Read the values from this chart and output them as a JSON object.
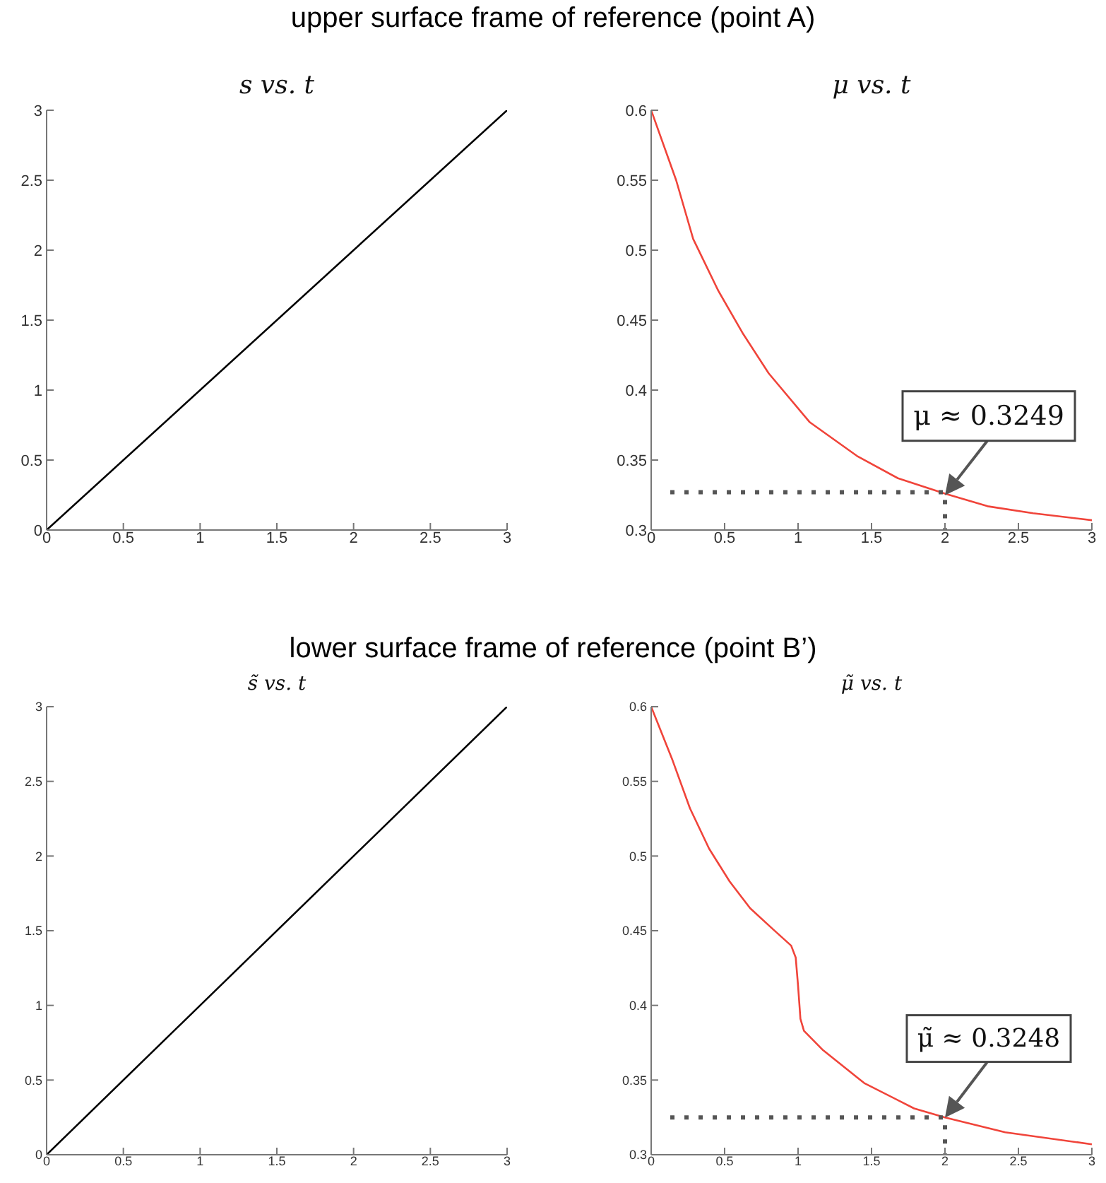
{
  "chart_data": [
    {
      "type": "line",
      "title": "s vs. t",
      "annotations": [
        "upper surface frame of reference (point A)"
      ],
      "series": [
        {
          "color": "#000000",
          "x": [
            0,
            3
          ],
          "values": [
            0,
            3
          ]
        }
      ],
      "xlim": [
        0,
        3
      ],
      "xticks": [
        0,
        0.5,
        1,
        1.5,
        2,
        2.5,
        3
      ],
      "ylim": [
        0,
        3
      ],
      "yticks": [
        0,
        0.5,
        1,
        1.5,
        2,
        2.5,
        3
      ]
    },
    {
      "type": "line",
      "title": "μ vs. t",
      "series": [
        {
          "color": "#f0443a",
          "x": [
            0,
            0.17,
            0.286,
            0.457,
            0.627,
            0.8,
            1.08,
            1.4,
            1.68,
            2,
            2.29,
            2.6,
            3
          ],
          "values": [
            0.6,
            0.55,
            0.508,
            0.471,
            0.44,
            0.412,
            0.377,
            0.353,
            0.337,
            0.326,
            0.317,
            0.312,
            0.307
          ]
        },
        {
          "color": "#555555",
          "line_style": "dotted",
          "x": [
            0.13,
            2,
            2
          ],
          "values": [
            0.327,
            0.327,
            0.3
          ]
        }
      ],
      "annotations": [
        {
          "text": "μ ≈ 0.3249",
          "x": 2,
          "y": 0.3249
        }
      ],
      "xlim": [
        0,
        3
      ],
      "xticks": [
        0,
        0.5,
        1,
        1.5,
        2,
        2.5,
        3
      ],
      "ylim": [
        0.3,
        0.6
      ],
      "yticks": [
        0.3,
        0.35,
        0.4,
        0.45,
        0.5,
        0.55,
        0.6
      ]
    },
    {
      "type": "line",
      "title": "s̃ vs. t",
      "annotations": [
        "lower surface frame of reference (point B’)"
      ],
      "series": [
        {
          "color": "#000000",
          "x": [
            0,
            3
          ],
          "values": [
            0,
            3
          ]
        }
      ],
      "xlim": [
        0,
        3
      ],
      "xticks": [
        0,
        0.5,
        1,
        1.5,
        2,
        2.5,
        3
      ],
      "ylim": [
        0,
        3
      ],
      "yticks": [
        0,
        0.5,
        1,
        1.5,
        2,
        2.5,
        3
      ]
    },
    {
      "type": "line",
      "title": "μ̃ vs. t",
      "series": [
        {
          "color": "#f0443a",
          "x": [
            0,
            0.146,
            0.264,
            0.394,
            0.534,
            0.674,
            0.829,
            0.953,
            0.984,
            1,
            1.016,
            1.04,
            1.17,
            1.45,
            1.79,
            2,
            2.41,
            3
          ],
          "values": [
            0.6,
            0.564,
            0.532,
            0.505,
            0.483,
            0.465,
            0.451,
            0.44,
            0.432,
            0.413,
            0.391,
            0.383,
            0.37,
            0.348,
            0.331,
            0.325,
            0.315,
            0.307
          ]
        },
        {
          "color": "#555555",
          "line_style": "dotted",
          "x": [
            0.13,
            2,
            2
          ],
          "values": [
            0.325,
            0.325,
            0.3
          ]
        }
      ],
      "annotations": [
        {
          "text": "μ̃ ≈ 0.3248",
          "x": 2,
          "y": 0.3248
        }
      ],
      "xlim": [
        0,
        3
      ],
      "xticks": [
        0,
        0.5,
        1,
        1.5,
        2,
        2.5,
        3
      ],
      "ylim": [
        0.3,
        0.6
      ],
      "yticks": [
        0.3,
        0.35,
        0.4,
        0.45,
        0.5,
        0.55,
        0.6
      ]
    }
  ]
}
